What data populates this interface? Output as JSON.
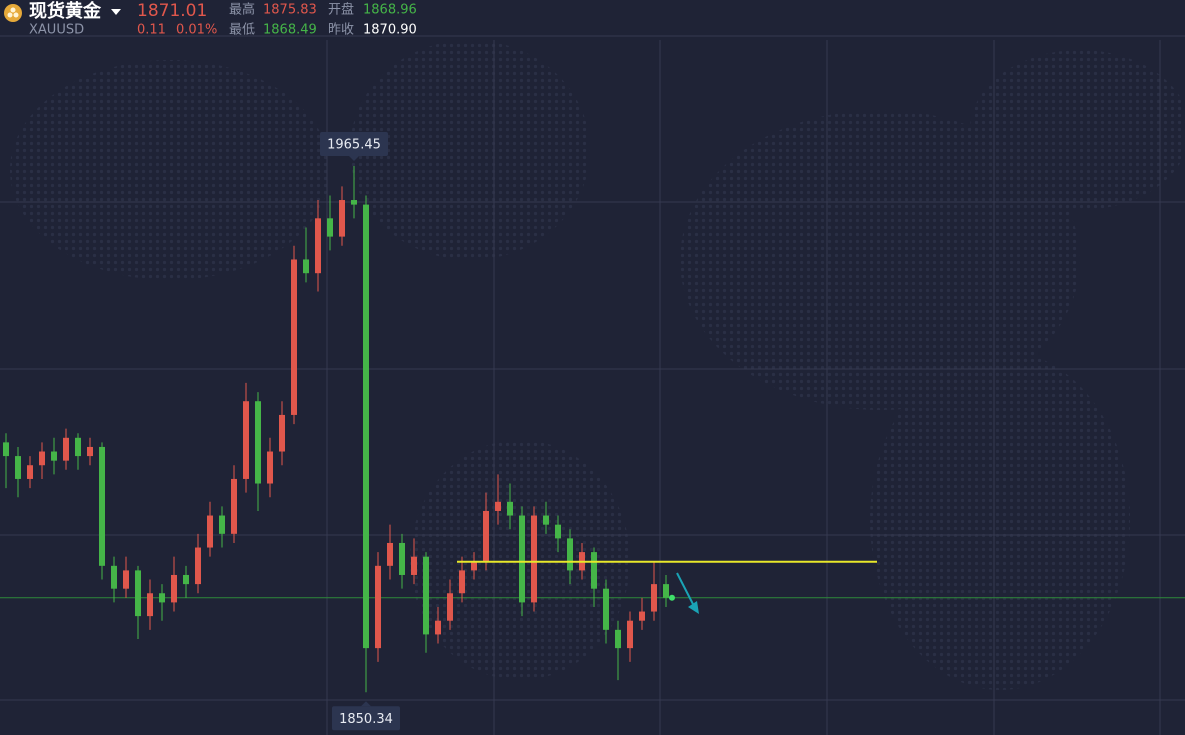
{
  "chart_data": {
    "type": "candlestick",
    "quote": {
      "name": "现货黄金",
      "symbol": "XAUUSD",
      "change": 0.11,
      "change_pct": "0.01%",
      "high_label": "最高",
      "high": 1875.83,
      "open_label": "开盘",
      "open": 1868.96,
      "low_label": "最低",
      "low": 1868.49,
      "prev_close_label": "昨收",
      "prev_close": "1870.90"
    },
    "last": 1871.01,
    "up_color": "#e0574c",
    "down_color": "#45b548",
    "categories": [
      null,
      null,
      null,
      null,
      null,
      null,
      null,
      null,
      null,
      null,
      null,
      null,
      null,
      null,
      null,
      null,
      null,
      null,
      null,
      null,
      null,
      null,
      null,
      null,
      null,
      null,
      null,
      null,
      null,
      null,
      null,
      null,
      null,
      null,
      null,
      null,
      null,
      null,
      null,
      null,
      null,
      null,
      null,
      null,
      null,
      null,
      null,
      null,
      null,
      null,
      null,
      null,
      null,
      null,
      null,
      null
    ],
    "open": [
      1905,
      1902,
      1897,
      1900,
      1903,
      1901,
      1906,
      1902,
      1904,
      1878,
      1873,
      1877,
      1867,
      1872,
      1870,
      1876,
      1874,
      1882,
      1889,
      1885,
      1897,
      1914,
      1896,
      1903,
      1911,
      1945,
      1942,
      1954,
      1950,
      1958,
      1957,
      1860,
      1878,
      1883,
      1876,
      1880,
      1863,
      1866,
      1872,
      1877,
      1879,
      1890,
      1892,
      1889,
      1870,
      1889,
      1887,
      1884,
      1877,
      1881,
      1873,
      1864,
      1860,
      1866,
      1868,
      1874
    ],
    "high": [
      1907,
      1904,
      1902,
      1905,
      1906,
      1908,
      1907,
      1906,
      1905,
      1880,
      1880,
      1878,
      1875,
      1874,
      1880,
      1878,
      1885,
      1892,
      1891,
      1900,
      1918,
      1916,
      1906,
      1914,
      1948,
      1952,
      1958,
      1959,
      1961,
      1965.45,
      1959,
      1881,
      1887,
      1885,
      1884,
      1881,
      1869,
      1875,
      1880,
      1881,
      1894,
      1898,
      1896,
      1891,
      1891,
      1892,
      1889,
      1886,
      1883,
      1882,
      1875,
      1866,
      1868,
      1871,
      1879,
      1876
    ],
    "low": [
      1895,
      1893,
      1895,
      1897,
      1898,
      1899,
      1899,
      1900,
      1875,
      1870,
      1871,
      1862,
      1864,
      1866,
      1868,
      1871,
      1872,
      1880,
      1882,
      1883,
      1894,
      1890,
      1893,
      1900,
      1909,
      1940,
      1938,
      1947,
      1948,
      1954,
      1850.34,
      1857,
      1875,
      1873,
      1874,
      1859,
      1861,
      1864,
      1870,
      1875,
      1877,
      1887,
      1886,
      1867,
      1868,
      1885,
      1881,
      1874,
      1875,
      1869,
      1861,
      1853,
      1857,
      1864,
      1866,
      1869
    ],
    "close": [
      1902,
      1897,
      1900,
      1903,
      1901,
      1906,
      1902,
      1904,
      1878,
      1873,
      1877,
      1867,
      1872,
      1870,
      1876,
      1874,
      1882,
      1889,
      1885,
      1897,
      1914,
      1896,
      1903,
      1911,
      1945,
      1942,
      1954,
      1950,
      1958,
      1957,
      1860,
      1878,
      1883,
      1876,
      1880,
      1863,
      1866,
      1872,
      1877,
      1879,
      1890,
      1892,
      1889,
      1870,
      1889,
      1887,
      1884,
      1877,
      1881,
      1873,
      1864,
      1860,
      1866,
      1868,
      1874,
      1871.01
    ],
    "high_marker": 1965.45,
    "low_marker": 1850.34,
    "hline": {
      "value": 1878.9,
      "color": "#e8e82a"
    },
    "ylim": [
      1841,
      1993
    ],
    "grid": true
  }
}
